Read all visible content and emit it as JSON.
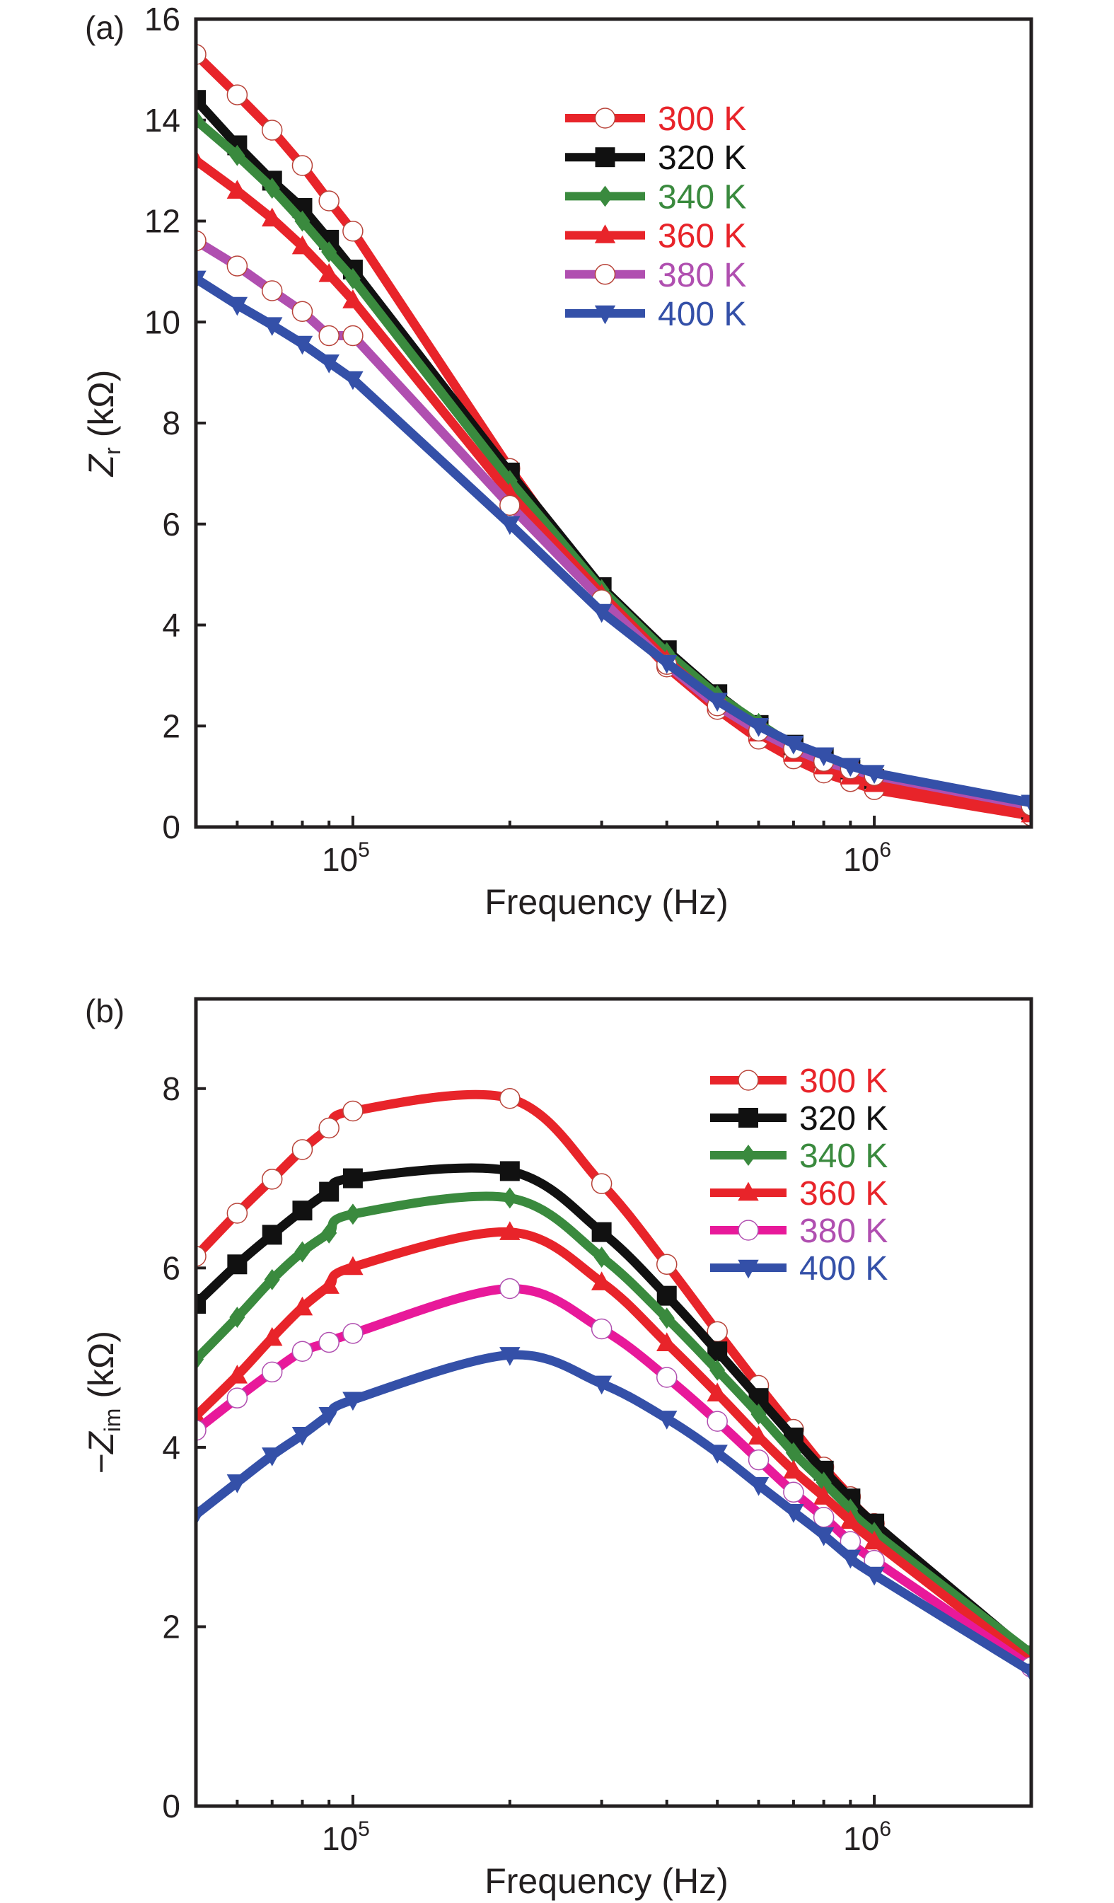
{
  "figure": {
    "panels": [
      "(a)",
      "(b)"
    ]
  },
  "chart_data": [
    {
      "type": "line",
      "panel_label": "(a)",
      "title": "",
      "xlabel": "Frequency (Hz)",
      "ylabel": "Zr (kΩ)",
      "ylabel_main": "Z",
      "ylabel_sub": "r",
      "ylabel_unit": " (kΩ)",
      "xscale": "log",
      "xlim": [
        50000,
        2000000
      ],
      "ylim": [
        0,
        16
      ],
      "yticks": [
        0,
        2,
        4,
        6,
        8,
        10,
        12,
        14,
        16
      ],
      "xticks_major": [
        {
          "value": 100000,
          "base": "10",
          "exp": "5"
        },
        {
          "value": 1000000,
          "base": "10",
          "exp": "6"
        }
      ],
      "xticks_minor": [
        60000,
        70000,
        80000,
        90000,
        200000,
        300000,
        400000,
        500000,
        600000,
        700000,
        800000,
        900000
      ],
      "grid": false,
      "legend_position": "top-right",
      "x": [
        50000,
        60000,
        70000,
        80000,
        90000,
        100000,
        200000,
        300000,
        400000,
        500000,
        600000,
        700000,
        800000,
        900000,
        1000000,
        2000000
      ],
      "series": [
        {
          "name": "300 K",
          "color": "#e8242a",
          "text_color": "#e8242a",
          "marker": "open-circle",
          "values": [
            15.3,
            14.5,
            13.8,
            13.1,
            12.4,
            11.8,
            7.1,
            4.55,
            3.17,
            2.33,
            1.74,
            1.35,
            1.07,
            0.9,
            0.74,
            0.22
          ]
        },
        {
          "name": "320 K",
          "color": "#111111",
          "text_color": "#111111",
          "marker": "square",
          "values": [
            14.4,
            13.5,
            12.8,
            12.26,
            11.63,
            11.04,
            7.02,
            4.75,
            3.5,
            2.63,
            2.02,
            1.63,
            1.37,
            1.14,
            0.95,
            0.34
          ]
        },
        {
          "name": "340 K",
          "color": "#3a8a3e",
          "text_color": "#3a8a3e",
          "marker": "diamond",
          "values": [
            14.0,
            13.3,
            12.65,
            12.0,
            11.39,
            10.86,
            6.86,
            4.7,
            3.45,
            2.6,
            2.05,
            1.6,
            1.35,
            1.1,
            1.0,
            0.38
          ]
        },
        {
          "name": "360 K",
          "color": "#e8242a",
          "text_color": "#e8242a",
          "marker": "triangle-up",
          "values": [
            13.2,
            12.6,
            12.05,
            11.5,
            10.95,
            10.43,
            6.6,
            4.6,
            3.3,
            2.45,
            1.85,
            1.45,
            1.2,
            1.0,
            0.85,
            0.25
          ]
        },
        {
          "name": "380 K",
          "color": "#b04fb0",
          "text_color": "#b04fb0",
          "marker": "open-circle",
          "values": [
            11.61,
            11.11,
            10.62,
            10.21,
            9.73,
            9.73,
            6.37,
            4.5,
            3.22,
            2.4,
            1.9,
            1.55,
            1.3,
            1.15,
            1.02,
            0.42
          ]
        },
        {
          "name": "400 K",
          "color": "#3450a8",
          "text_color": "#3450a8",
          "marker": "triangle-down",
          "values": [
            10.86,
            10.34,
            9.94,
            9.57,
            9.2,
            8.87,
            6.0,
            4.26,
            3.25,
            2.5,
            2.0,
            1.65,
            1.42,
            1.21,
            1.07,
            0.48
          ]
        }
      ]
    },
    {
      "type": "line",
      "panel_label": "(b)",
      "title": "",
      "xlabel": "Frequency (Hz)",
      "ylabel": "−Zim (kΩ)",
      "ylabel_main": "−Z",
      "ylabel_sub": "im",
      "ylabel_unit": " (kΩ)",
      "xscale": "log",
      "xlim": [
        50000,
        2000000
      ],
      "ylim": [
        0,
        9
      ],
      "yticks": [
        0,
        2,
        4,
        6,
        8
      ],
      "xticks_major": [
        {
          "value": 100000,
          "base": "10",
          "exp": "5"
        },
        {
          "value": 1000000,
          "base": "10",
          "exp": "6"
        }
      ],
      "xticks_minor": [
        60000,
        70000,
        80000,
        90000,
        200000,
        300000,
        400000,
        500000,
        600000,
        700000,
        800000,
        900000
      ],
      "grid": false,
      "legend_position": "top-right",
      "x": [
        50000,
        60000,
        70000,
        80000,
        90000,
        100000,
        200000,
        300000,
        400000,
        500000,
        600000,
        700000,
        800000,
        900000,
        1000000,
        2000000
      ],
      "series": [
        {
          "name": "300 K",
          "color": "#e8242a",
          "text_color": "#e8242a",
          "marker": "open-circle",
          "values": [
            6.13,
            6.61,
            6.99,
            7.32,
            7.56,
            7.75,
            7.89,
            6.94,
            6.04,
            5.29,
            4.69,
            4.2,
            3.78,
            3.45,
            3.15,
            1.67
          ]
        },
        {
          "name": "320 K",
          "color": "#111111",
          "text_color": "#111111",
          "marker": "square",
          "values": [
            5.6,
            6.04,
            6.37,
            6.64,
            6.85,
            7.0,
            7.08,
            6.4,
            5.69,
            5.07,
            4.55,
            4.11,
            3.74,
            3.43,
            3.15,
            1.68
          ]
        },
        {
          "name": "340 K",
          "color": "#3a8a3e",
          "text_color": "#3a8a3e",
          "marker": "diamond",
          "values": [
            4.98,
            5.45,
            5.87,
            6.18,
            6.39,
            6.6,
            6.78,
            6.12,
            5.44,
            4.86,
            4.37,
            3.94,
            3.61,
            3.31,
            3.05,
            1.7
          ]
        },
        {
          "name": "360 K",
          "color": "#e8242a",
          "text_color": "#e8242a",
          "marker": "triangle-up",
          "values": [
            4.35,
            4.8,
            5.22,
            5.56,
            5.8,
            6.01,
            6.4,
            5.84,
            5.16,
            4.6,
            4.12,
            3.74,
            3.45,
            3.18,
            2.95,
            1.6
          ]
        },
        {
          "name": "380 K",
          "color": "#e8199a",
          "text_color": "#b04fb0",
          "marker": "open-circle",
          "values": [
            4.19,
            4.55,
            4.84,
            5.07,
            5.17,
            5.27,
            5.77,
            5.32,
            4.78,
            4.29,
            3.86,
            3.5,
            3.22,
            2.95,
            2.74,
            1.55
          ]
        },
        {
          "name": "400 K",
          "color": "#3450a8",
          "text_color": "#3450a8",
          "marker": "triangle-down",
          "values": [
            3.25,
            3.61,
            3.91,
            4.14,
            4.36,
            4.53,
            5.03,
            4.71,
            4.32,
            3.94,
            3.58,
            3.28,
            3.02,
            2.77,
            2.58,
            1.5
          ]
        }
      ]
    }
  ]
}
